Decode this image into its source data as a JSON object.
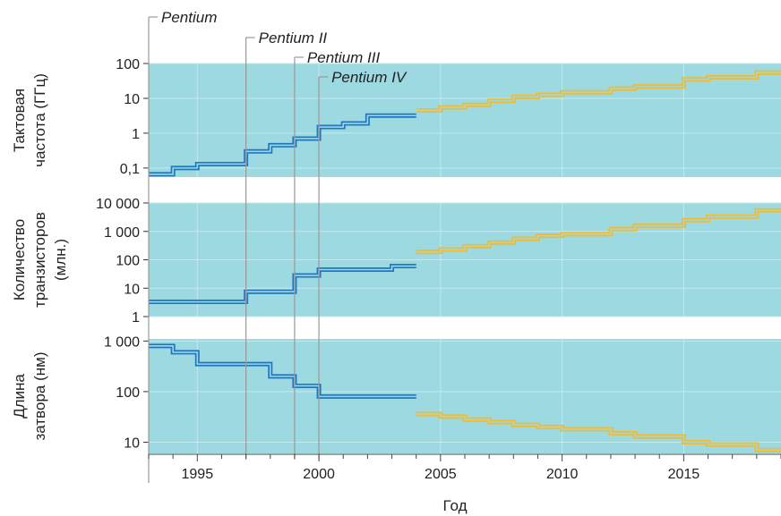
{
  "chart_data": {
    "type": "line",
    "x_axis": {
      "title": "Год",
      "range": [
        1993,
        2019
      ],
      "tick_labels": [
        1995,
        2000,
        2005,
        2010,
        2015
      ],
      "minor_ticks_every": 1
    },
    "processors": [
      {
        "name": "Pentium",
        "year": 1993
      },
      {
        "name": "Pentium II",
        "year": 1997
      },
      {
        "name": "Pentium III",
        "year": 1999
      },
      {
        "name": "Pentium IV",
        "year": 2000
      }
    ],
    "colors": {
      "panel_background": "#9dd9e1",
      "historical_series": "#1f77c4",
      "projected_series": "#f5b92a",
      "marker_lines": "#999999",
      "grid": "#c4e9ef"
    },
    "panels": [
      {
        "id": "clock",
        "ylabel_lines": [
          "Тактовая",
          "частота (ГГц)"
        ],
        "scale": "log",
        "ylim": [
          0.055,
          100
        ],
        "ytick_values": [
          0.1,
          1,
          10,
          100
        ],
        "ytick_labels": [
          "0,1",
          "1",
          "10",
          "100"
        ],
        "historical": {
          "x": [
            1993,
            1994,
            1995,
            1997,
            1998,
            1999,
            2000,
            2001,
            2002,
            2004
          ],
          "y": [
            0.066,
            0.1,
            0.13,
            0.3,
            0.45,
            0.7,
            1.5,
            1.9,
            3.2,
            3.2
          ]
        },
        "projected": {
          "x": [
            2004,
            2005,
            2006,
            2007,
            2008,
            2009,
            2010,
            2012,
            2013,
            2015,
            2016,
            2018,
            2019
          ],
          "y": [
            4.5,
            5.5,
            6.5,
            8.5,
            11,
            12.5,
            15,
            19,
            22,
            35,
            40,
            55,
            55
          ]
        }
      },
      {
        "id": "transistors",
        "ylabel_lines": [
          "Количество",
          "транзисторов",
          "(млн.)"
        ],
        "scale": "log",
        "ylim": [
          1,
          10000
        ],
        "ytick_values": [
          1,
          10,
          100,
          1000,
          10000
        ],
        "ytick_labels": [
          "1",
          "10",
          "100",
          "1 000",
          "10 000"
        ],
        "historical": {
          "x": [
            1993,
            1997,
            1999,
            2000,
            2003,
            2004
          ],
          "y": [
            3.3,
            7.5,
            28,
            45,
            60,
            60
          ]
        },
        "projected": {
          "x": [
            2004,
            2005,
            2006,
            2007,
            2008,
            2009,
            2010,
            2012,
            2013,
            2015,
            2016,
            2018,
            2019
          ],
          "y": [
            190,
            230,
            300,
            400,
            550,
            700,
            800,
            1200,
            1600,
            2500,
            3300,
            5500,
            5500
          ]
        }
      },
      {
        "id": "gate",
        "ylabel_lines": [
          "Длина",
          "затвора (нм)"
        ],
        "scale": "log",
        "ylim": [
          6,
          1100
        ],
        "ytick_values": [
          10,
          100,
          1000
        ],
        "ytick_labels": [
          "10",
          "100",
          "1 000"
        ],
        "historical": {
          "x": [
            1993,
            1994,
            1995,
            1998,
            1999,
            2000,
            2004
          ],
          "y": [
            800,
            600,
            350,
            200,
            130,
            80,
            80
          ]
        },
        "projected": {
          "x": [
            2004,
            2005,
            2006,
            2007,
            2008,
            2009,
            2010,
            2012,
            2013,
            2015,
            2016,
            2018,
            2019
          ],
          "y": [
            36,
            32,
            28,
            25,
            22,
            20,
            18,
            15,
            13,
            10,
            9,
            7,
            7
          ]
        }
      }
    ]
  }
}
